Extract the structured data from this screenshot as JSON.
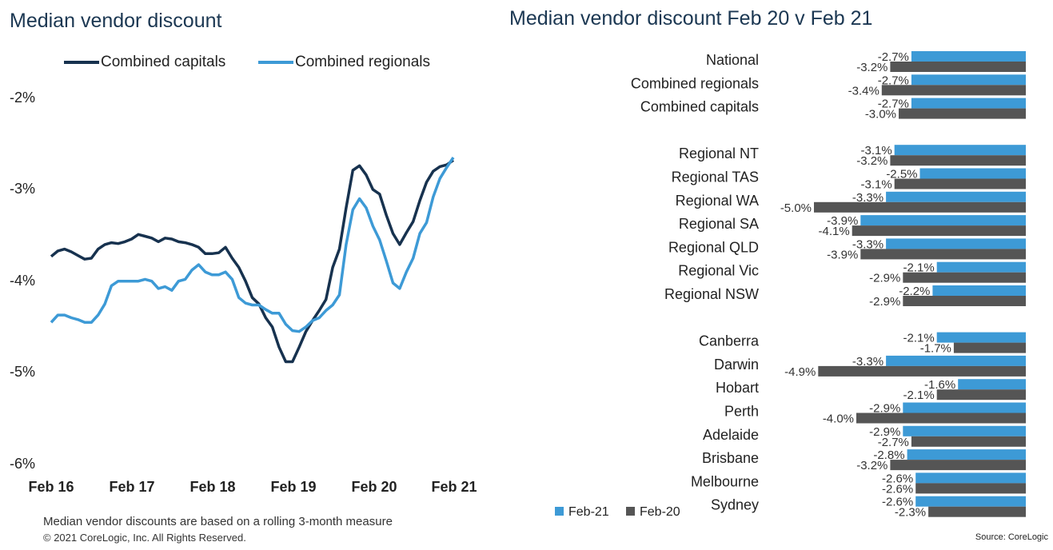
{
  "left": {
    "title": "Median vendor discount",
    "note": "Median vendor discounts are based on a rolling 3-month measure",
    "copyright": "© 2021 CoreLogic,  Inc. All Rights  Reserved."
  },
  "right": {
    "title": "Median vendor discount Feb 20 v Feb 21",
    "source": "Source: CoreLogic"
  },
  "colors": {
    "capitals": "#17324f",
    "regionals": "#3d9ad6",
    "feb21": "#3d9ad6",
    "feb20": "#555555"
  },
  "chart_data": [
    {
      "type": "line",
      "title": "Median vendor discount",
      "x_tick_labels": [
        "Feb 16",
        "Feb 17",
        "Feb 18",
        "Feb 19",
        "Feb 20",
        "Feb 21"
      ],
      "y_tick_labels": [
        "-2%",
        "-3%",
        "-4%",
        "-5%",
        "-6%"
      ],
      "ylim": [
        -6,
        -1.5
      ],
      "xlim": [
        0,
        61
      ],
      "grid": false,
      "legend": "top",
      "series": [
        {
          "name": "Combined capitals",
          "x": [
            0,
            1,
            2,
            3,
            4,
            5,
            6,
            7,
            8,
            9,
            10,
            11,
            12,
            13,
            14,
            15,
            16,
            17,
            18,
            19,
            20,
            21,
            22,
            23,
            24,
            25,
            26,
            27,
            28,
            29,
            30,
            31,
            32,
            33,
            34,
            35,
            36,
            37,
            38,
            39,
            40,
            41,
            42,
            43,
            44,
            45,
            46,
            47,
            48,
            49,
            50,
            51,
            52,
            53,
            54,
            55,
            56,
            57,
            58,
            59,
            60
          ],
          "values": [
            -3.73,
            -3.67,
            -3.65,
            -3.68,
            -3.72,
            -3.76,
            -3.75,
            -3.65,
            -3.6,
            -3.58,
            -3.59,
            -3.57,
            -3.54,
            -3.49,
            -3.51,
            -3.53,
            -3.57,
            -3.53,
            -3.54,
            -3.57,
            -3.58,
            -3.6,
            -3.63,
            -3.7,
            -3.7,
            -3.69,
            -3.63,
            -3.75,
            -3.85,
            -4.0,
            -4.18,
            -4.25,
            -4.4,
            -4.5,
            -4.72,
            -4.88,
            -4.88,
            -4.72,
            -4.55,
            -4.43,
            -4.32,
            -4.2,
            -3.85,
            -3.65,
            -3.2,
            -2.79,
            -2.74,
            -2.84,
            -3.0,
            -3.05,
            -3.28,
            -3.48,
            -3.6,
            -3.47,
            -3.35,
            -3.12,
            -2.92,
            -2.8,
            -2.75,
            -2.73,
            -2.68
          ]
        },
        {
          "name": "Combined regionals",
          "x": [
            0,
            1,
            2,
            3,
            4,
            5,
            6,
            7,
            8,
            9,
            10,
            11,
            12,
            13,
            14,
            15,
            16,
            17,
            18,
            19,
            20,
            21,
            22,
            23,
            24,
            25,
            26,
            27,
            28,
            29,
            30,
            31,
            32,
            33,
            34,
            35,
            36,
            37,
            38,
            39,
            40,
            41,
            42,
            43,
            44,
            45,
            46,
            47,
            48,
            49,
            50,
            51,
            52,
            53,
            54,
            55,
            56,
            57,
            58,
            59,
            60
          ],
          "values": [
            -4.45,
            -4.37,
            -4.37,
            -4.4,
            -4.42,
            -4.45,
            -4.45,
            -4.37,
            -4.25,
            -4.05,
            -4.0,
            -4.0,
            -4.0,
            -4.0,
            -3.98,
            -4.0,
            -4.08,
            -4.06,
            -4.1,
            -4.0,
            -3.98,
            -3.88,
            -3.82,
            -3.9,
            -3.93,
            -3.93,
            -3.9,
            -3.98,
            -4.18,
            -4.24,
            -4.26,
            -4.26,
            -4.31,
            -4.35,
            -4.35,
            -4.47,
            -4.54,
            -4.55,
            -4.5,
            -4.43,
            -4.4,
            -4.32,
            -4.26,
            -4.15,
            -3.6,
            -3.22,
            -3.1,
            -3.2,
            -3.4,
            -3.55,
            -3.78,
            -4.02,
            -4.08,
            -3.9,
            -3.75,
            -3.48,
            -3.36,
            -3.08,
            -2.88,
            -2.76,
            -2.65
          ]
        }
      ]
    },
    {
      "type": "bar",
      "orientation": "horizontal",
      "title": "Median vendor discount Feb 20 v Feb 21",
      "legend": "bottom-left",
      "categories": [
        "National",
        "Combined regionals",
        "Combined capitals",
        "Regional NT",
        "Regional TAS",
        "Regional WA",
        "Regional SA",
        "Regional QLD",
        "Regional Vic",
        "Regional NSW",
        "Canberra",
        "Darwin",
        "Hobart",
        "Perth",
        "Adelaide",
        "Brisbane",
        "Melbourne",
        "Sydney"
      ],
      "groups": [
        3,
        7,
        8
      ],
      "series": [
        {
          "name": "Feb-21",
          "values": [
            -2.7,
            -2.7,
            -2.7,
            -3.1,
            -2.5,
            -3.3,
            -3.9,
            -3.3,
            -2.1,
            -2.2,
            -2.1,
            -3.3,
            -1.6,
            -2.9,
            -2.9,
            -2.8,
            -2.6,
            -2.6
          ]
        },
        {
          "name": "Feb-20",
          "values": [
            -3.2,
            -3.4,
            -3.0,
            -3.2,
            -3.1,
            -5.0,
            -4.1,
            -3.9,
            -2.9,
            -2.9,
            -1.7,
            -4.9,
            -2.1,
            -4.0,
            -2.7,
            -3.2,
            -2.6,
            -2.3
          ]
        }
      ],
      "data_labels": {
        "Feb-21": [
          "-2.7%",
          "-2.7%",
          "-2.7%",
          "-3.1%",
          "-2.5%",
          "-3.3%",
          "-3.9%",
          "-3.3%",
          "-2.1%",
          "-2.2%",
          "-2.1%",
          "-3.3%",
          "-1.6%",
          "-2.9%",
          "-2.9%",
          "-2.8%",
          "-2.6%",
          "-2.6%"
        ],
        "Feb-20": [
          "-3.2%",
          "-3.4%",
          "-3.0%",
          "-3.2%",
          "-3.1%",
          "-5.0%",
          "-4.1%",
          "-3.9%",
          "-2.9%",
          "-2.9%",
          "-1.7%",
          "-4.9%",
          "-2.1%",
          "-4.0%",
          "-2.7%",
          "-3.2%",
          "-2.6%",
          "-2.3%"
        ]
      }
    }
  ]
}
